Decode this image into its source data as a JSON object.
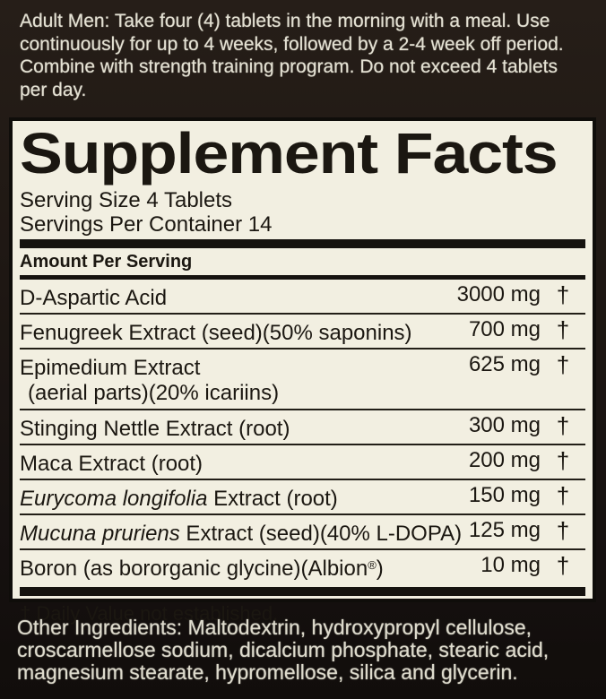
{
  "colors": {
    "label_bg": "#1d1712",
    "panel_bg": "#f2efe1",
    "ink": "#1b1711",
    "light_text": "#e4e1d3"
  },
  "directions": {
    "lines": [
      "Adult Men: Take four (4) tablets in the morning with a meal. Use",
      "continuously for up to 4 weeks, followed by a 2-4 week off period.",
      "Combine with strength training program. Do not exceed 4 tablets",
      "per day."
    ]
  },
  "facts": {
    "title": "Supplement Facts",
    "serving_size": "Serving Size 4 Tablets",
    "servings_per_container": "Servings Per Container 14",
    "amount_per_serving": "Amount Per Serving",
    "rows": [
      {
        "name": "D-Aspartic Acid",
        "amount": "3000 mg",
        "dv": "†"
      },
      {
        "name": "Fenugreek Extract (seed)(50% saponins)",
        "amount": "700 mg",
        "dv": "†"
      },
      {
        "name": "Epimedium Extract",
        "name_line2": "(aerial parts)(20% icariins)",
        "amount": "625 mg",
        "dv": "†"
      },
      {
        "name": "Stinging Nettle Extract (root)",
        "amount": "300 mg",
        "dv": "†"
      },
      {
        "name": "Maca Extract (root)",
        "amount": "200 mg",
        "dv": "†"
      },
      {
        "name_italic": "Eurycoma longifolia",
        "name": " Extract (root)",
        "amount": "150 mg",
        "dv": "†"
      },
      {
        "name_italic": "Mucuna pruriens",
        "name": " Extract (seed)(40% L-DOPA)",
        "amount": "125 mg",
        "dv": "†"
      },
      {
        "name": "Boron (as bororganic glycine)(Albion",
        "name_sup": "®",
        "name_tail": ")",
        "amount": "10 mg",
        "dv": "†"
      }
    ],
    "footnote": "† Daily Value not established."
  },
  "other_ingredients": {
    "lines": [
      "Other Ingredients: Maltodextrin, hydroxypropyl cellulose,",
      "croscarmellose sodium, dicalcium phosphate, stearic acid,",
      "magnesium stearate, hypromellose, silica and glycerin."
    ]
  }
}
